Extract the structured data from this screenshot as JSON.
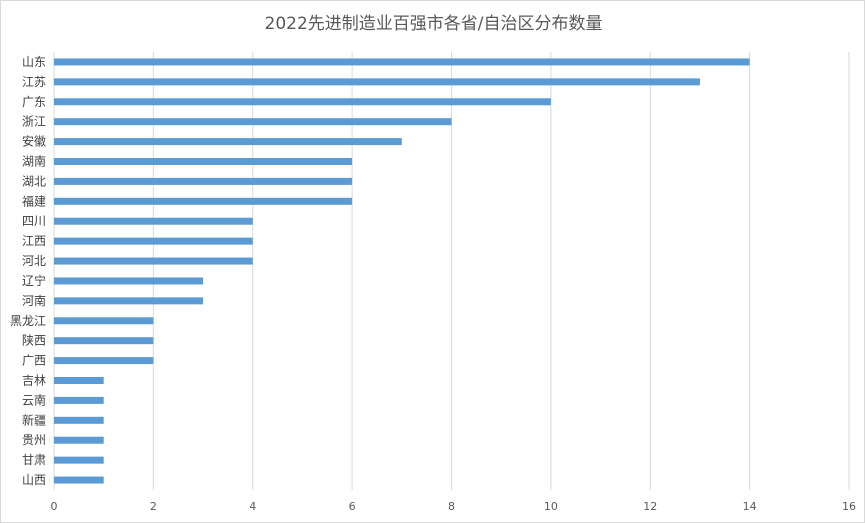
{
  "chart_data": {
    "type": "bar",
    "orientation": "horizontal",
    "title": "2022先进制造业百强市各省/自治区分布数量",
    "categories": [
      "山东",
      "江苏",
      "广东",
      "浙江",
      "安徽",
      "湖南",
      "湖北",
      "福建",
      "四川",
      "江西",
      "河北",
      "辽宁",
      "河南",
      "黑龙江",
      "陕西",
      "广西",
      "吉林",
      "云南",
      "新疆",
      "贵州",
      "甘肃",
      "山西"
    ],
    "values": [
      14,
      13,
      10,
      8,
      7,
      6,
      6,
      6,
      4,
      4,
      4,
      3,
      3,
      2,
      2,
      2,
      1,
      1,
      1,
      1,
      1,
      1
    ],
    "xlim": [
      0,
      16
    ],
    "x_ticks": [
      "0",
      "2",
      "4",
      "6",
      "8",
      "10",
      "12",
      "14",
      "16"
    ],
    "grid": "vertical",
    "legend": "none",
    "bar_color": "#5b9bd5",
    "grid_color": "#d9d9d9"
  }
}
